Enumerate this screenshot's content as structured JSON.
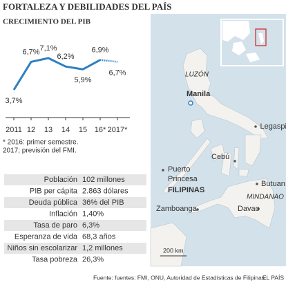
{
  "title": "FORTALEZA Y DEBILIDADES DEL PAÍS",
  "chart_data": {
    "type": "line",
    "subtitle": "CRECIMIENTO DEL PIB",
    "categories": [
      "2011",
      "12",
      "13",
      "14",
      "15",
      "16*",
      "2017*"
    ],
    "values": [
      3.7,
      6.7,
      7.1,
      6.2,
      5.9,
      6.9,
      6.7
    ],
    "value_labels": [
      "3,7%",
      "6,7%",
      "7,1%",
      "6,2%",
      "5,9%",
      "6,9%",
      "6,7%"
    ],
    "projected": [
      false,
      false,
      false,
      false,
      false,
      true,
      true
    ],
    "color": "#2f7fc1",
    "notes": [
      "* 2016: primer semestre.",
      "2017; previsión del FMI."
    ]
  },
  "table": {
    "rows": [
      [
        "Población",
        "102 millones"
      ],
      [
        "PIB per cápita",
        "2.863 dólares"
      ],
      [
        "Deuda pública",
        "36% del PIB"
      ],
      [
        "Inflación",
        "1,40%"
      ],
      [
        "Tasa de paro",
        "6,3%"
      ],
      [
        "Esperanza de vida",
        "68,3 años"
      ],
      [
        "Niños sin escolarizar",
        "1,2 millones"
      ],
      [
        "Tasa pobreza",
        "26,3%"
      ]
    ]
  },
  "map": {
    "labels": [
      "LUZÓN",
      "Manila",
      "Legaspi",
      "Puerto",
      "Princesa",
      "Cebú",
      "FILIPINAS",
      "Butuan",
      "MINDANAO",
      "Davao",
      "Zamboanga"
    ],
    "scale": "200 km"
  },
  "source": "Fuente: fuentes: FMI, ONU, Autoridad de Estadísticas de Filipinas.",
  "credit": "EL PAÍS"
}
